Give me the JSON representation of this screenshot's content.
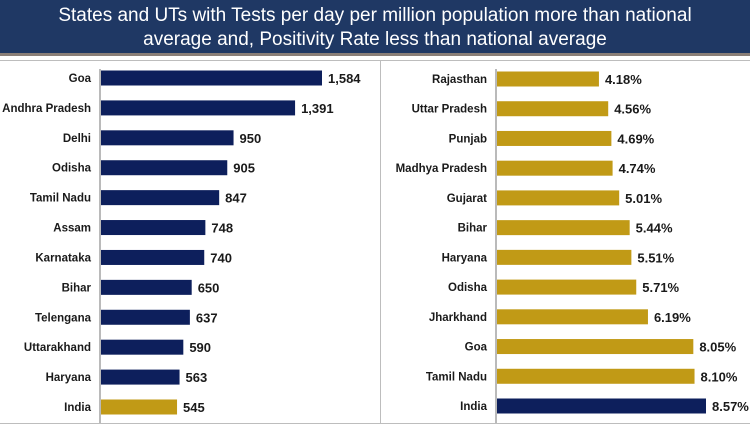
{
  "header": {
    "title_line1": "States and UTs with Tests per day per million population more than national",
    "title_line2": "average and, Positivity Rate less than national average"
  },
  "colors": {
    "navy": "#0d1f5c",
    "gold": "#c19a16",
    "header_bg": "#1f3864"
  },
  "chart_data": [
    {
      "type": "bar",
      "orientation": "horizontal",
      "title": "Tests per day per million population",
      "categories": [
        "Goa",
        "Andhra Pradesh",
        "Delhi",
        "Odisha",
        "Tamil Nadu",
        "Assam",
        "Karnataka",
        "Bihar",
        "Telengana",
        "Uttarakhand",
        "Haryana",
        "India"
      ],
      "values": [
        1584,
        1391,
        950,
        905,
        847,
        748,
        740,
        650,
        637,
        590,
        563,
        545
      ],
      "labels": [
        "1,584",
        "1,391",
        "950",
        "905",
        "847",
        "748",
        "740",
        "650",
        "637",
        "590",
        "563",
        "545"
      ],
      "highlight": "India",
      "bar_color": "#0d1f5c",
      "highlight_color": "#c19a16",
      "xlim": [
        0,
        1584
      ],
      "grid": false
    },
    {
      "type": "bar",
      "orientation": "horizontal",
      "title": "Positivity Rate (%)",
      "categories": [
        "Rajasthan",
        "Uttar Pradesh",
        "Punjab",
        "Madhya Pradesh",
        "Gujarat",
        "Bihar",
        "Haryana",
        "Odisha",
        "Jharkhand",
        "Goa",
        "Tamil Nadu",
        "India"
      ],
      "values": [
        4.18,
        4.56,
        4.69,
        4.74,
        5.01,
        5.44,
        5.51,
        5.71,
        6.19,
        8.05,
        8.1,
        8.57
      ],
      "labels": [
        "4.18%",
        "4.56%",
        "4.69%",
        "4.74%",
        "5.01%",
        "5.44%",
        "5.51%",
        "5.71%",
        "6.19%",
        "8.05%",
        "8.10%",
        "8.57%"
      ],
      "highlight": "India",
      "bar_color": "#c19a16",
      "highlight_color": "#0d1f5c",
      "xlim": [
        0,
        8.57
      ],
      "grid": false
    }
  ]
}
